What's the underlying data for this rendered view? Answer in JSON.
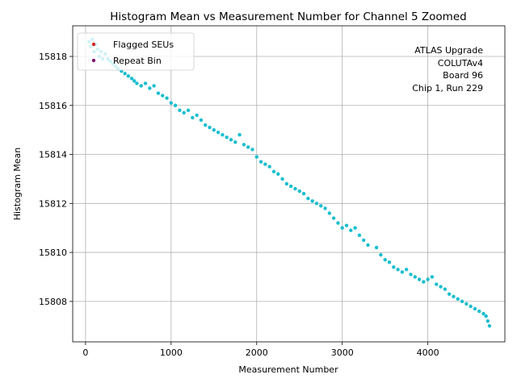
{
  "chart_data": {
    "type": "scatter",
    "title": "Histogram Mean vs Measurement Number for Channel 5 Zoomed",
    "xlabel": "Measurement Number",
    "ylabel": "Histogram Mean",
    "xlim": [
      -150,
      4900
    ],
    "ylim": [
      15806.35,
      15819.25
    ],
    "x_ticks": [
      0,
      1000,
      2000,
      3000,
      4000
    ],
    "y_ticks": [
      15808,
      15810,
      15812,
      15814,
      15816,
      15818
    ],
    "grid": true,
    "legend_position": "top-left",
    "legend": [
      {
        "label": "Flagged SEUs",
        "color": "#d62728"
      },
      {
        "label": "Repeat Bin",
        "color": "#7b1a6e"
      }
    ],
    "annotation": [
      "ATLAS Upgrade",
      "COLUTAv4",
      "Board 96",
      "Chip 1, Run 229"
    ],
    "series": [
      {
        "color": "#17becf",
        "x": [
          40,
          60,
          80,
          100,
          120,
          140,
          160,
          180,
          200,
          230,
          260,
          290,
          320,
          350,
          380,
          420,
          460,
          500,
          540,
          570,
          600,
          650,
          700,
          750,
          800,
          850,
          900,
          950,
          1000,
          1050,
          1100,
          1150,
          1200,
          1250,
          1300,
          1350,
          1400,
          1450,
          1500,
          1550,
          1600,
          1650,
          1700,
          1750,
          1800,
          1850,
          1900,
          1950,
          2000,
          2050,
          2100,
          2150,
          2200,
          2250,
          2300,
          2350,
          2400,
          2450,
          2500,
          2550,
          2600,
          2650,
          2700,
          2750,
          2800,
          2850,
          2900,
          2950,
          3000,
          3050,
          3100,
          3150,
          3200,
          3250,
          3300,
          3400,
          3450,
          3500,
          3550,
          3600,
          3650,
          3700,
          3750,
          3800,
          3850,
          3900,
          3950,
          4000,
          4050,
          4100,
          4150,
          4200,
          4250,
          4300,
          4350,
          4400,
          4450,
          4500,
          4550,
          4600,
          4650,
          4680,
          4700,
          4720
        ],
        "y": [
          15818.6,
          15818.4,
          15818.7,
          15818.2,
          15818.5,
          15818.3,
          15818.0,
          15818.2,
          15817.9,
          15818.1,
          15817.9,
          15817.8,
          15817.7,
          15817.6,
          15817.5,
          15817.4,
          15817.3,
          15817.2,
          15817.1,
          15817.0,
          15816.9,
          15816.8,
          15816.9,
          15816.7,
          15816.8,
          15816.5,
          15816.4,
          15816.3,
          15816.1,
          15816.0,
          15815.8,
          15815.7,
          15815.8,
          15815.5,
          15815.6,
          15815.4,
          15815.2,
          15815.1,
          15815.0,
          15814.9,
          15814.8,
          15814.7,
          15814.6,
          15814.5,
          15814.8,
          15814.4,
          15814.3,
          15814.2,
          15813.9,
          15813.7,
          15813.6,
          15813.5,
          15813.3,
          15813.2,
          15813.0,
          15812.8,
          15812.7,
          15812.6,
          15812.5,
          15812.4,
          15812.2,
          15812.1,
          15812.0,
          15811.9,
          15811.8,
          15811.6,
          15811.4,
          15811.2,
          15811.0,
          15811.1,
          15810.9,
          15811.0,
          15810.7,
          15810.5,
          15810.3,
          15810.2,
          15809.9,
          15809.7,
          15809.6,
          15809.4,
          15809.3,
          15809.2,
          15809.3,
          15809.1,
          15809.0,
          15808.9,
          15808.8,
          15808.9,
          15809.0,
          15808.7,
          15808.6,
          15808.5,
          15808.3,
          15808.2,
          15808.1,
          15808.0,
          15807.9,
          15807.8,
          15807.7,
          15807.6,
          15807.5,
          15807.4,
          15807.2,
          15807.0
        ]
      }
    ]
  }
}
